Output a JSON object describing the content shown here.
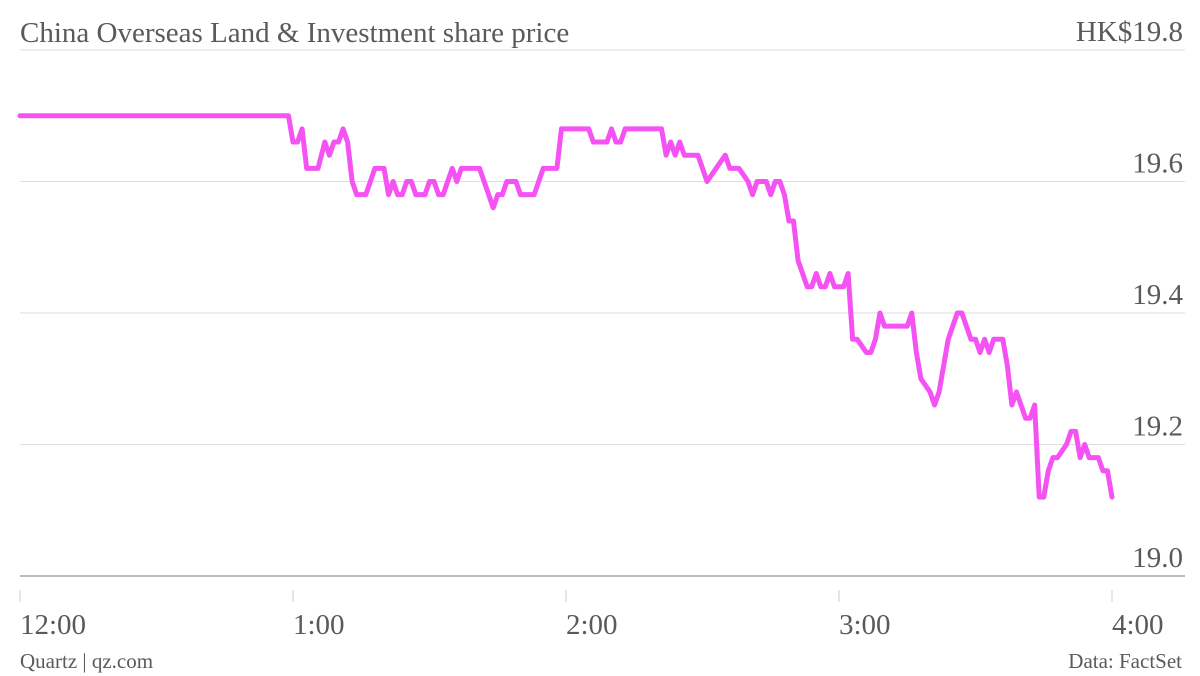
{
  "chart_data": {
    "type": "line",
    "title": "China Overseas Land & Investment share price",
    "source": "Data: FactSet",
    "credit": "Quartz | qz.com",
    "color": "#f552f3",
    "grid": true,
    "x": [
      0,
      59,
      60,
      61,
      62,
      63,
      65.5,
      67,
      68,
      69,
      70,
      71,
      72,
      73,
      74,
      76,
      78,
      80,
      81,
      82,
      83,
      84,
      85,
      86,
      87,
      89,
      90,
      91,
      92,
      93,
      95,
      96,
      97,
      101,
      104,
      105,
      106,
      107,
      109,
      110,
      113,
      115,
      118,
      119,
      125,
      126,
      129,
      130,
      131,
      132,
      133,
      141,
      142,
      143,
      144,
      145,
      146,
      149,
      151,
      153,
      155,
      156,
      158,
      160,
      161,
      162,
      164,
      165,
      166,
      167,
      168,
      169,
      170,
      171,
      172,
      173,
      174,
      175,
      176,
      177,
      178,
      179,
      181,
      182,
      183,
      184,
      186,
      187,
      188,
      189,
      190,
      195,
      196,
      197,
      198,
      200,
      201,
      202,
      204,
      205,
      206,
      207,
      209,
      210,
      211,
      212,
      213,
      214,
      216,
      217,
      218,
      219,
      221,
      222,
      223,
      224,
      225,
      226,
      227,
      228,
      230,
      231,
      232,
      233,
      234,
      235,
      237,
      238,
      239,
      240
    ],
    "values": [
      19.7,
      19.7,
      19.66,
      19.66,
      19.68,
      19.62,
      19.62,
      19.66,
      19.64,
      19.66,
      19.66,
      19.68,
      19.66,
      19.6,
      19.58,
      19.58,
      19.62,
      19.62,
      19.58,
      19.6,
      19.58,
      19.58,
      19.6,
      19.6,
      19.58,
      19.58,
      19.6,
      19.6,
      19.58,
      19.58,
      19.62,
      19.6,
      19.62,
      19.62,
      19.56,
      19.58,
      19.58,
      19.6,
      19.6,
      19.58,
      19.58,
      19.62,
      19.62,
      19.68,
      19.68,
      19.66,
      19.66,
      19.68,
      19.66,
      19.66,
      19.68,
      19.68,
      19.64,
      19.66,
      19.64,
      19.66,
      19.64,
      19.64,
      19.6,
      19.62,
      19.64,
      19.62,
      19.62,
      19.6,
      19.58,
      19.6,
      19.6,
      19.58,
      19.6,
      19.6,
      19.58,
      19.54,
      19.54,
      19.48,
      19.46,
      19.44,
      19.44,
      19.46,
      19.44,
      19.44,
      19.46,
      19.44,
      19.44,
      19.46,
      19.36,
      19.36,
      19.34,
      19.34,
      19.36,
      19.4,
      19.38,
      19.38,
      19.4,
      19.34,
      19.3,
      19.28,
      19.26,
      19.28,
      19.36,
      19.38,
      19.4,
      19.4,
      19.36,
      19.36,
      19.34,
      19.36,
      19.34,
      19.36,
      19.36,
      19.32,
      19.26,
      19.28,
      19.24,
      19.24,
      19.26,
      19.12,
      19.12,
      19.16,
      19.18,
      19.18,
      19.2,
      19.22,
      19.22,
      19.18,
      19.2,
      19.18,
      19.18,
      19.16,
      19.16,
      19.12
    ],
    "xlim": [
      0,
      240
    ],
    "xticks": [
      {
        "value": 0,
        "label": "12:00"
      },
      {
        "value": 60,
        "label": "1:00"
      },
      {
        "value": 120,
        "label": "2:00"
      },
      {
        "value": 180,
        "label": "3:00"
      },
      {
        "value": 240,
        "label": "4:00"
      }
    ],
    "ylim": [
      19.0,
      19.8
    ],
    "yticks": [
      {
        "value": 19,
        "label": "19.0"
      },
      19.2,
      19.4,
      19.6,
      {
        "value": 19.8,
        "label": "HK$19.8"
      }
    ]
  }
}
